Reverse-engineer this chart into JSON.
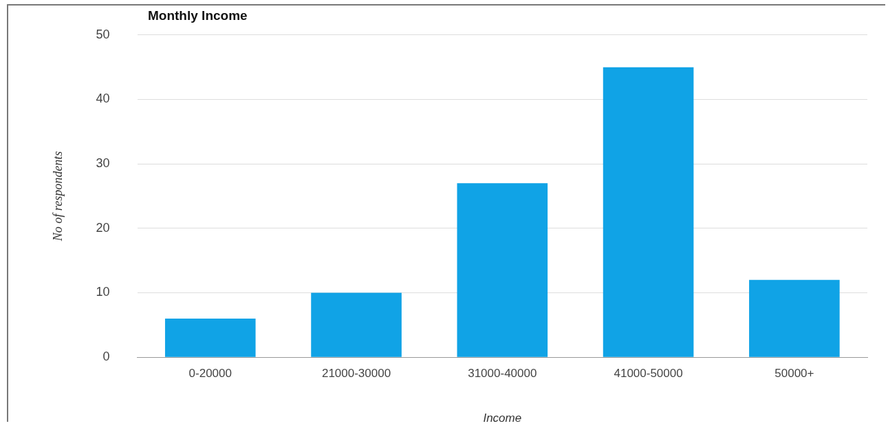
{
  "chart_data": {
    "type": "bar",
    "title": "Monthly Income",
    "xlabel": "Income",
    "ylabel": "No of respondents",
    "categories": [
      "0-20000",
      "21000-30000",
      "31000-40000",
      "41000-50000",
      "50000+"
    ],
    "values": [
      6,
      10,
      27,
      45,
      12
    ],
    "color": "#10a3e6",
    "ylim": [
      0,
      50
    ],
    "yticks": [
      0,
      10,
      20,
      30,
      40,
      50
    ],
    "grid": "y",
    "legend": false
  }
}
